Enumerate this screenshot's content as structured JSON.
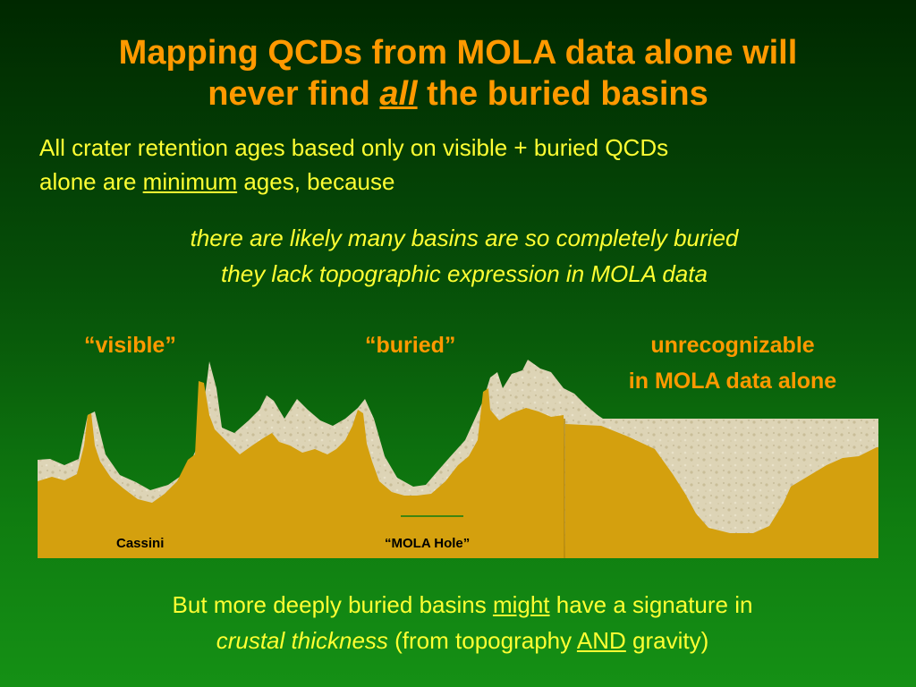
{
  "title": {
    "line1": "Mapping QCDs from MOLA data alone will",
    "line2_pre": "never find ",
    "line2_emph": "all",
    "line2_post": " the buried basins"
  },
  "intro": {
    "line1": "All crater retention ages based only on visible + buried QCDs",
    "line2_pre": "alone are ",
    "line2_emph": "minimum",
    "line2_post": " ages, because"
  },
  "reason": {
    "line1": "there are likely many basins are so completely buried",
    "line2": "they lack topographic expression in MOLA data"
  },
  "labels": {
    "visible": "“visible”",
    "buried": "“buried”",
    "unrecognizable_line1": "unrecognizable",
    "unrecognizable_line2": "in MOLA data alone"
  },
  "diagram": {
    "cassini": "Cassini",
    "mola_hole": "“MOLA Hole”"
  },
  "footer": {
    "line1_pre": "But more deeply buried basins ",
    "line1_emph": "might",
    "line1_post": " have a signature in",
    "line2_emph": "crustal thickness",
    "line2_mid": " (from topography ",
    "line2_and": "AND",
    "line2_post": " gravity)"
  },
  "colors": {
    "title": "#ff9900",
    "body_text": "#ffff33",
    "fill_gold": "#d4a00e",
    "topo_sand": "#ddd4b6"
  }
}
